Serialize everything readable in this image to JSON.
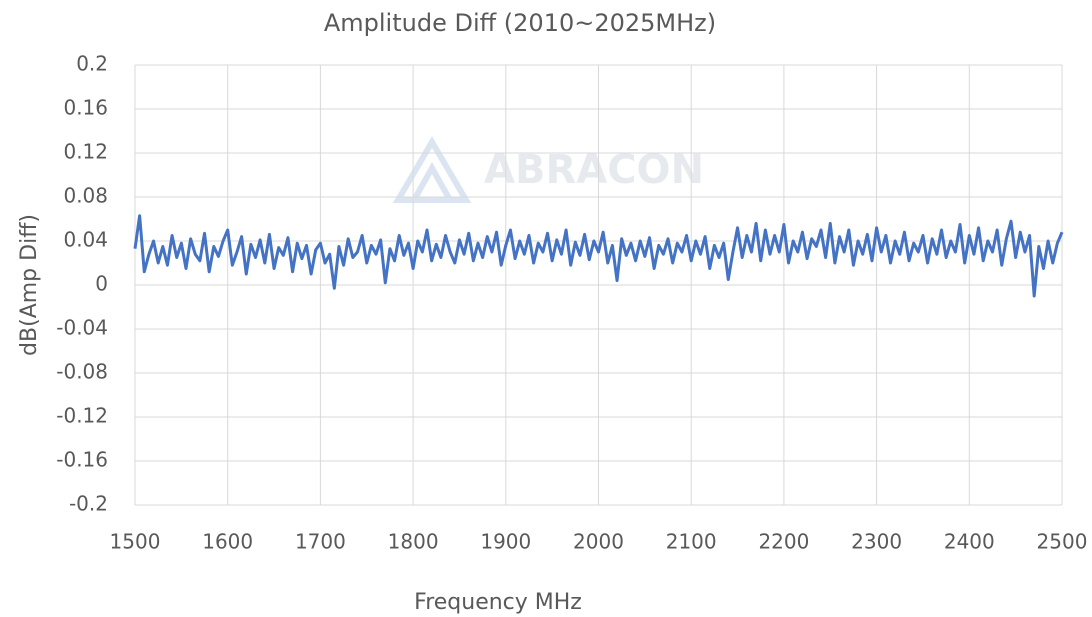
{
  "chart_data": {
    "type": "line",
    "title": "Amplitude Diff (2010~2025MHz)",
    "watermark": "ABRACON",
    "x_label": "Frequency MHz",
    "y_label": "dB(Amp Diff)",
    "color": "#4472c4",
    "grid": true,
    "xlim": [
      1500,
      2500
    ],
    "xticks": [
      1500,
      1600,
      1700,
      1800,
      1900,
      2000,
      2100,
      2200,
      2300,
      2400,
      2500
    ],
    "ylim": [
      -0.2,
      0.2
    ],
    "yticks": [
      0.2,
      0.16,
      0.12,
      0.08,
      0.04,
      0,
      -0.04,
      -0.08,
      -0.12,
      -0.16,
      -0.2
    ],
    "x": [
      1500,
      1505,
      1510,
      1515,
      1520,
      1525,
      1530,
      1535,
      1540,
      1545,
      1550,
      1555,
      1560,
      1565,
      1570,
      1575,
      1580,
      1585,
      1590,
      1595,
      1600,
      1605,
      1610,
      1615,
      1620,
      1625,
      1630,
      1635,
      1640,
      1645,
      1650,
      1655,
      1660,
      1665,
      1670,
      1675,
      1680,
      1685,
      1690,
      1695,
      1700,
      1705,
      1710,
      1715,
      1720,
      1725,
      1730,
      1735,
      1740,
      1745,
      1750,
      1755,
      1760,
      1765,
      1770,
      1775,
      1780,
      1785,
      1790,
      1795,
      1800,
      1805,
      1810,
      1815,
      1820,
      1825,
      1830,
      1835,
      1840,
      1845,
      1850,
      1855,
      1860,
      1865,
      1870,
      1875,
      1880,
      1885,
      1890,
      1895,
      1900,
      1905,
      1910,
      1915,
      1920,
      1925,
      1930,
      1935,
      1940,
      1945,
      1950,
      1955,
      1960,
      1965,
      1970,
      1975,
      1980,
      1985,
      1990,
      1995,
      2000,
      2005,
      2010,
      2015,
      2020,
      2025,
      2030,
      2035,
      2040,
      2045,
      2050,
      2055,
      2060,
      2065,
      2070,
      2075,
      2080,
      2085,
      2090,
      2095,
      2100,
      2105,
      2110,
      2115,
      2120,
      2125,
      2130,
      2135,
      2140,
      2145,
      2150,
      2155,
      2160,
      2165,
      2170,
      2175,
      2180,
      2185,
      2190,
      2195,
      2200,
      2205,
      2210,
      2215,
      2220,
      2225,
      2230,
      2235,
      2240,
      2245,
      2250,
      2255,
      2260,
      2265,
      2270,
      2275,
      2280,
      2285,
      2290,
      2295,
      2300,
      2305,
      2310,
      2315,
      2320,
      2325,
      2330,
      2335,
      2340,
      2345,
      2350,
      2355,
      2360,
      2365,
      2370,
      2375,
      2380,
      2385,
      2390,
      2395,
      2400,
      2405,
      2410,
      2415,
      2420,
      2425,
      2430,
      2435,
      2440,
      2445,
      2450,
      2455,
      2460,
      2465,
      2470,
      2475,
      2480,
      2485,
      2490,
      2495,
      2500
    ],
    "values": [
      0.033,
      0.063,
      0.012,
      0.028,
      0.04,
      0.02,
      0.035,
      0.018,
      0.045,
      0.025,
      0.038,
      0.015,
      0.042,
      0.028,
      0.022,
      0.047,
      0.012,
      0.035,
      0.026,
      0.04,
      0.05,
      0.018,
      0.03,
      0.044,
      0.01,
      0.037,
      0.025,
      0.041,
      0.02,
      0.046,
      0.015,
      0.034,
      0.027,
      0.043,
      0.012,
      0.038,
      0.024,
      0.036,
      0.01,
      0.032,
      0.038,
      0.02,
      0.028,
      -0.003,
      0.035,
      0.018,
      0.042,
      0.025,
      0.03,
      0.045,
      0.02,
      0.036,
      0.028,
      0.041,
      0.002,
      0.033,
      0.022,
      0.045,
      0.027,
      0.038,
      0.015,
      0.04,
      0.03,
      0.05,
      0.022,
      0.037,
      0.025,
      0.045,
      0.03,
      0.02,
      0.041,
      0.028,
      0.047,
      0.022,
      0.038,
      0.025,
      0.044,
      0.03,
      0.048,
      0.018,
      0.036,
      0.05,
      0.024,
      0.04,
      0.028,
      0.045,
      0.02,
      0.038,
      0.03,
      0.047,
      0.022,
      0.041,
      0.028,
      0.05,
      0.018,
      0.039,
      0.027,
      0.046,
      0.023,
      0.04,
      0.03,
      0.048,
      0.02,
      0.036,
      0.004,
      0.042,
      0.027,
      0.038,
      0.022,
      0.04,
      0.026,
      0.043,
      0.015,
      0.036,
      0.028,
      0.042,
      0.02,
      0.038,
      0.03,
      0.045,
      0.022,
      0.04,
      0.028,
      0.044,
      0.015,
      0.036,
      0.025,
      0.038,
      0.005,
      0.03,
      0.052,
      0.025,
      0.045,
      0.03,
      0.056,
      0.022,
      0.05,
      0.028,
      0.045,
      0.03,
      0.055,
      0.02,
      0.04,
      0.03,
      0.048,
      0.024,
      0.042,
      0.035,
      0.05,
      0.025,
      0.056,
      0.02,
      0.044,
      0.03,
      0.05,
      0.018,
      0.04,
      0.028,
      0.046,
      0.022,
      0.052,
      0.03,
      0.045,
      0.02,
      0.04,
      0.028,
      0.048,
      0.022,
      0.038,
      0.03,
      0.045,
      0.02,
      0.042,
      0.028,
      0.05,
      0.025,
      0.04,
      0.03,
      0.055,
      0.02,
      0.045,
      0.028,
      0.052,
      0.022,
      0.04,
      0.03,
      0.05,
      0.018,
      0.042,
      0.058,
      0.025,
      0.048,
      0.03,
      0.045,
      -0.01,
      0.035,
      0.015,
      0.04,
      0.02,
      0.038,
      0.048
    ]
  }
}
